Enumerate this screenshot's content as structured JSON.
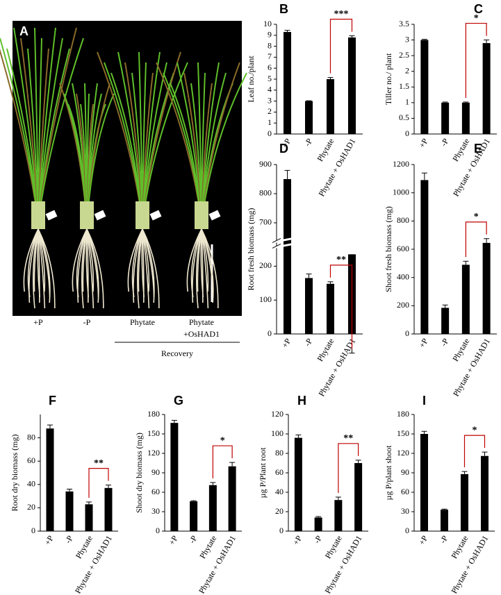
{
  "photo": {
    "panel_label": "A",
    "labels": [
      [
        "+P"
      ],
      [
        "-P"
      ],
      [
        "Phytate"
      ],
      [
        "Phytate",
        "+OsHAD1"
      ]
    ],
    "bracket_label": "Recovery"
  },
  "chart_data": [
    {
      "type": "bar",
      "panel_label": "B",
      "y_label": "Leaf no./plant",
      "categories": [
        "+P",
        "-P",
        "Phytate",
        "Phytate + OsHAD1"
      ],
      "values": [
        9.3,
        3.0,
        5.0,
        8.8
      ],
      "errors": [
        0.15,
        0.03,
        0.15,
        0.15
      ],
      "color": "#000000",
      "ylim": [
        0,
        10
      ],
      "yticks": [
        0,
        1,
        2,
        3,
        4,
        5,
        6,
        7,
        8,
        9,
        10
      ],
      "annotation": "***",
      "annotation_color": "#c00000"
    },
    {
      "type": "bar",
      "panel_label": "C",
      "y_label": "Tiller no./ plant",
      "categories": [
        "+P",
        "-P",
        "Phytate",
        "Phytate + OsHAD1"
      ],
      "values": [
        3.0,
        1.0,
        1.0,
        2.9
      ],
      "errors": [
        0.02,
        0.02,
        0.02,
        0.1
      ],
      "color": "#000000",
      "ylim": [
        0,
        3.5
      ],
      "yticks": [
        0,
        0.5,
        1,
        1.5,
        2,
        2.5,
        3,
        3.5
      ],
      "annotation": "*",
      "annotation_color": "#c00000"
    },
    {
      "type": "bar",
      "panel_label": "D",
      "y_label": "Root fresh biomass (mg)",
      "categories": [
        "+P",
        "-P",
        "Phytate",
        "Phytate + OsHAD1"
      ],
      "values": [
        850,
        165,
        148,
        235
      ],
      "errors": [
        30,
        12,
        6,
        18
      ],
      "color": "#000000",
      "ylim": [
        0,
        900
      ],
      "ybreak": [
        250,
        650
      ],
      "yticks": [
        0,
        100,
        200,
        700,
        800,
        900
      ],
      "annotation": "**",
      "annotation_color": "#c00000"
    },
    {
      "type": "bar",
      "panel_label": "E",
      "y_label": "Shoot fresh biomass (mg)",
      "categories": [
        "+P",
        "-P",
        "Phytate",
        "Phytate + OsHAD1"
      ],
      "values": [
        1090,
        185,
        490,
        645
      ],
      "errors": [
        50,
        20,
        25,
        30
      ],
      "color": "#000000",
      "ylim": [
        0,
        1200
      ],
      "yticks": [
        0,
        200,
        400,
        600,
        800,
        1000,
        1200
      ],
      "annotation": "*",
      "annotation_color": "#c00000"
    },
    {
      "type": "bar",
      "panel_label": "F",
      "y_label": "Root dry biomass (mg)",
      "categories": [
        "+P",
        "-P",
        "Phytate",
        "Phytate + OsHAD1"
      ],
      "values": [
        88,
        34,
        23,
        37
      ],
      "errors": [
        3,
        2,
        2,
        2.5
      ],
      "color": "#000000",
      "ylim": [
        0,
        100
      ],
      "yticks": [
        0,
        20,
        40,
        60,
        80
      ],
      "annotation": "**",
      "annotation_color": "#c00000"
    },
    {
      "type": "bar",
      "panel_label": "G",
      "y_label": "Shoot dry biomass (mg)",
      "categories": [
        "+P",
        "-P",
        "Phytate",
        "Phytate + OsHAD1"
      ],
      "values": [
        167,
        46,
        71,
        100
      ],
      "errors": [
        4,
        1,
        4,
        6
      ],
      "color": "#000000",
      "ylim": [
        0,
        180
      ],
      "yticks": [
        0,
        30,
        60,
        90,
        120,
        150,
        180
      ],
      "annotation": "*",
      "annotation_color": "#c00000"
    },
    {
      "type": "bar",
      "panel_label": "H",
      "y_label": "µg P/Plant root",
      "categories": [
        "+P",
        "-P",
        "Phytate",
        "Phytate + OsHAD1"
      ],
      "values": [
        96,
        14,
        32,
        70
      ],
      "errors": [
        3,
        1,
        3,
        3
      ],
      "color": "#000000",
      "ylim": [
        0,
        120
      ],
      "yticks": [
        0,
        20,
        40,
        60,
        80,
        100,
        120
      ],
      "annotation": "**",
      "annotation_color": "#c00000"
    },
    {
      "type": "bar",
      "panel_label": "I",
      "y_label": "µg P/plant shoot",
      "categories": [
        "+P",
        "-P",
        "Phytate",
        "Phytate + OsHAD1"
      ],
      "values": [
        150,
        33,
        88,
        116
      ],
      "errors": [
        4,
        1,
        4,
        6
      ],
      "color": "#000000",
      "ylim": [
        0,
        180
      ],
      "yticks": [
        0,
        30,
        60,
        90,
        120,
        150,
        180
      ],
      "annotation": "*",
      "annotation_color": "#c00000"
    }
  ]
}
